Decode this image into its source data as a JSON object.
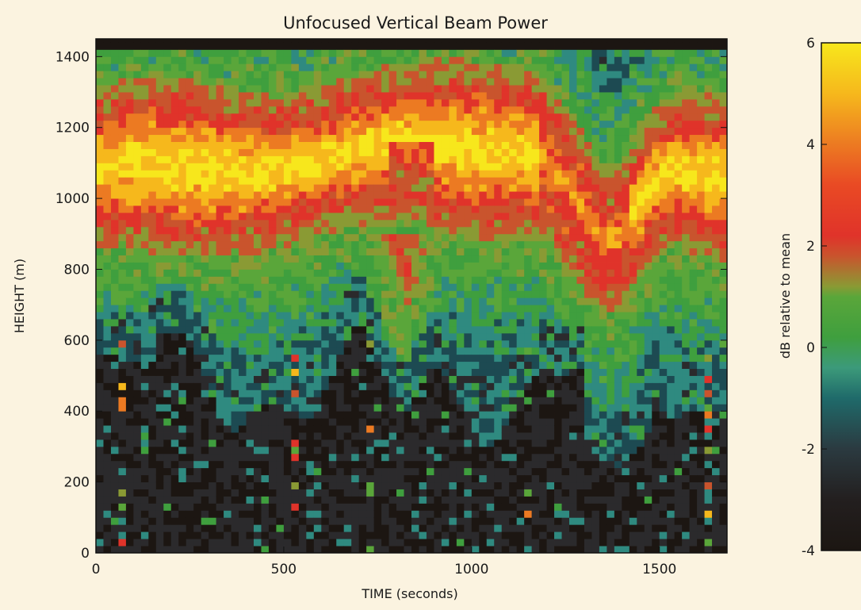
{
  "chart_data": [
    {
      "type": "heatmap",
      "title": "Unfocused Vertical Beam Power",
      "xlabel": "TIME (seconds)",
      "ylabel": "HEIGHT (m)",
      "xlim": [
        0,
        1680
      ],
      "ylim": [
        0,
        1450
      ],
      "x_ticks": [
        "0",
        "500",
        "1000",
        "1500"
      ],
      "x_tick_values": [
        0,
        500,
        1000,
        1500
      ],
      "y_ticks": [
        "0",
        "200",
        "400",
        "600",
        "800",
        "1000",
        "1200",
        "1400"
      ],
      "y_tick_values": [
        0,
        200,
        400,
        600,
        800,
        1000,
        1200,
        1400
      ],
      "colormap": [
        "#1c1612",
        "#2b2a2c",
        "#1d4a52",
        "#2f8a80",
        "#3f9f3e",
        "#5aa63a",
        "#8a9a34",
        "#c9542d",
        "#e0332a",
        "#ec7a22",
        "#f6b81c",
        "#f7e71c"
      ],
      "grid": false,
      "features": {
        "layer_center_height": [
          [
            0,
            1080
          ],
          [
            100,
            1100
          ],
          [
            200,
            1090
          ],
          [
            300,
            1080
          ],
          [
            400,
            1070
          ],
          [
            500,
            1080
          ],
          [
            600,
            1110
          ],
          [
            700,
            1140
          ],
          [
            800,
            1160
          ],
          [
            900,
            1150
          ],
          [
            1000,
            1140
          ],
          [
            1100,
            1130
          ],
          [
            1200,
            1110
          ],
          [
            1260,
            1020
          ],
          [
            1300,
            960
          ],
          [
            1350,
            880
          ],
          [
            1400,
            900
          ],
          [
            1450,
            990
          ],
          [
            1500,
            1060
          ],
          [
            1550,
            1080
          ],
          [
            1600,
            1070
          ],
          [
            1680,
            1050
          ]
        ],
        "sub_layer_dip_minimum": [
          [
            820,
            520
          ]
        ]
      }
    },
    {
      "type": "heatmap",
      "title": "",
      "ylabel": "dB relative to mean",
      "ylim": [
        -4,
        6
      ],
      "y_ticks": [
        "-4",
        "-2",
        "0",
        "2",
        "4",
        "6"
      ],
      "y_tick_values": [
        -4,
        -2,
        0,
        2,
        4,
        6
      ],
      "legend": "colorbar-right"
    }
  ]
}
